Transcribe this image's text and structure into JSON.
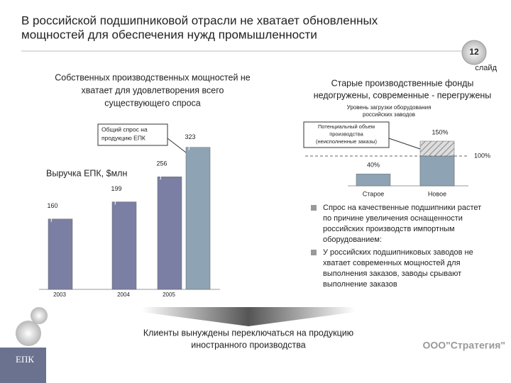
{
  "title": [
    "В российской подшипниковой отрасли не хватает обновленных",
    "мощностей для обеспечения нужд промышленности"
  ],
  "page_number": "12",
  "page_label": "слайд",
  "left_heading": [
    "Собственных производственных мощностей не",
    "хватает для удовлетворения всего",
    "существующего спроса"
  ],
  "right_heading": [
    "Старые производственные фонды",
    "недогружены, современные - перегружены"
  ],
  "chart_data": [
    {
      "type": "bar",
      "categories": [
        "2003",
        "2004",
        "2005"
      ],
      "series": [
        {
          "name": "Выручка ЕПК, $млн",
          "color": "#7b7fa3",
          "values": [
            160,
            199,
            256
          ]
        },
        {
          "name": [
            "Общий спрос на",
            "продукцию ЕПК"
          ],
          "color": "#8ea3b3",
          "values": [
            null,
            null,
            323
          ]
        }
      ]
    },
    {
      "type": "bar",
      "title": [
        "Уровень загрузки оборудования",
        "российских заводов"
      ],
      "categories": [
        "Старое",
        "Новое"
      ],
      "series": [
        {
          "name": "Загрузка",
          "color": "#8ea3b3",
          "values": [
            40,
            100
          ],
          "value_labels": [
            "40%",
            "100%"
          ]
        },
        {
          "name": [
            "Потенциальный объем",
            "производства",
            "(неисполненные заказы)"
          ],
          "color": "#999999",
          "values": [
            null,
            150
          ],
          "value_labels": [
            null,
            "150%"
          ]
        }
      ]
    }
  ],
  "bullets": [
    [
      "Спрос на качественные подшипники растет",
      "по причине увеличения оснащенности",
      "российских производств импортным",
      "оборудованием:"
    ],
    [
      "У российских подшипниковых заводов не",
      "хватает современных мощностей для",
      "выполнения заказов, заводы срывают",
      "выполнение заказов"
    ]
  ],
  "conclusion": [
    "Клиенты вынуждены переключаться на продукцию",
    "иностранного производства"
  ],
  "logo": "ЕПК",
  "company": "ООО\"Стратегия\""
}
